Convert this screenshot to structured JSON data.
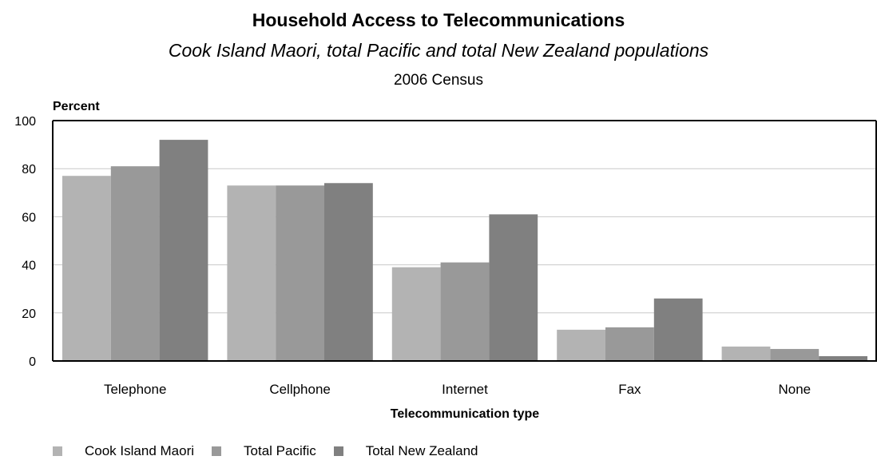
{
  "chart_data": {
    "type": "bar",
    "title": "Household Access to Telecommunications",
    "subtitle": "Cook Island Maori, total Pacific and total New Zealand populations",
    "subtitle2": "2006 Census",
    "ylabel": "Percent",
    "xlabel": "Telecommunication type",
    "ylim": [
      0,
      100
    ],
    "yticks": [
      0,
      20,
      40,
      60,
      80,
      100
    ],
    "grid": true,
    "legend_position": "bottom-left",
    "categories": [
      "Telephone",
      "Cellphone",
      "Internet",
      "Fax",
      "None"
    ],
    "series": [
      {
        "name": "Cook Island Maori",
        "color": "#b3b3b3",
        "values": [
          77,
          73,
          39,
          13,
          6
        ]
      },
      {
        "name": "Total Pacific",
        "color": "#999999",
        "values": [
          81,
          73,
          41,
          14,
          5
        ]
      },
      {
        "name": "Total New Zealand",
        "color": "#808080",
        "values": [
          92,
          74,
          61,
          26,
          2
        ]
      }
    ]
  }
}
